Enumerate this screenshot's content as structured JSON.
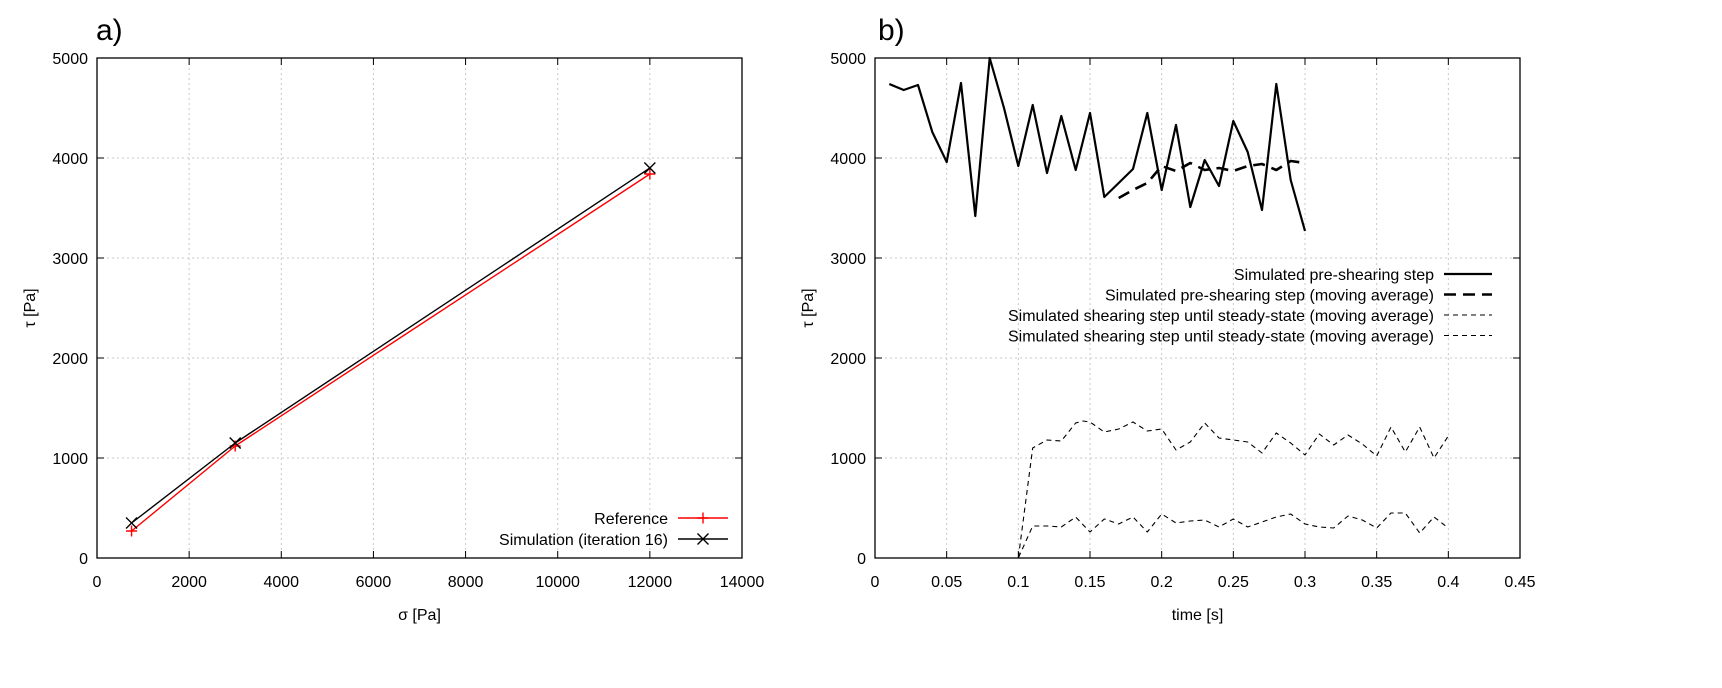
{
  "panels": {
    "a_label": "a)",
    "b_label": "b)"
  },
  "chart_data": [
    {
      "type": "line",
      "panel": "a)",
      "xlabel": "σ [Pa]",
      "ylabel": "τ [Pa]",
      "xlim": [
        0,
        14000
      ],
      "ylim": [
        0,
        5000
      ],
      "xticks": [
        0,
        2000,
        4000,
        6000,
        8000,
        10000,
        12000,
        14000
      ],
      "yticks": [
        0,
        1000,
        2000,
        3000,
        4000,
        5000
      ],
      "grid": true,
      "legend_position": "bottom-right",
      "series": [
        {
          "name": "Reference",
          "color": "#ff0000",
          "marker": "plus",
          "x": [
            750,
            3000,
            12000
          ],
          "y": [
            270,
            1120,
            3840
          ]
        },
        {
          "name": "Simulation (iteration 16)",
          "color": "#000000",
          "marker": "cross",
          "x": [
            750,
            3000,
            12000
          ],
          "y": [
            350,
            1150,
            3900
          ]
        }
      ]
    },
    {
      "type": "line",
      "panel": "b)",
      "xlabel": "time [s]",
      "ylabel": "τ [Pa]",
      "xlim": [
        0,
        0.45
      ],
      "ylim": [
        0,
        5000
      ],
      "xticks": [
        0,
        0.05,
        0.1,
        0.15,
        0.2,
        0.25,
        0.3,
        0.35,
        0.4,
        0.45
      ],
      "yticks": [
        0,
        1000,
        2000,
        3000,
        4000,
        5000
      ],
      "grid": true,
      "legend_position": "top-right",
      "series": [
        {
          "name": "Simulated pre-shearing step",
          "style": "solid",
          "color": "#000000",
          "x": [
            0.01,
            0.02,
            0.03,
            0.04,
            0.05,
            0.06,
            0.07,
            0.08,
            0.09,
            0.1,
            0.11,
            0.12,
            0.13,
            0.14,
            0.15,
            0.16,
            0.17,
            0.18,
            0.19,
            0.2,
            0.21,
            0.22,
            0.23,
            0.24,
            0.25,
            0.26,
            0.27,
            0.28,
            0.29,
            0.3
          ],
          "y": [
            4740,
            4680,
            4730,
            4260,
            3960,
            4750,
            3420,
            5000,
            4500,
            3920,
            4530,
            3850,
            4420,
            3880,
            4450,
            3610,
            3750,
            3890,
            4450,
            3680,
            4330,
            3510,
            3980,
            3720,
            4370,
            4060,
            3480,
            4740,
            3780,
            3270
          ]
        },
        {
          "name": "Simulated pre-shearing step (moving average)",
          "style": "dashed",
          "color": "#000000",
          "x": [
            0.17,
            0.18,
            0.19,
            0.2,
            0.21,
            0.22,
            0.23,
            0.24,
            0.25,
            0.26,
            0.27,
            0.28,
            0.29,
            0.3
          ],
          "y": [
            3600,
            3680,
            3750,
            3920,
            3870,
            3950,
            3880,
            3900,
            3870,
            3920,
            3940,
            3880,
            3970,
            3950
          ]
        },
        {
          "name": "Simulated shearing step until steady-state (moving average)",
          "style": "thin-dashed",
          "color": "#000000",
          "x": [
            0,
            0.1,
            0.11,
            0.12,
            0.13,
            0.14,
            0.145,
            0.15,
            0.16,
            0.17,
            0.18,
            0.19,
            0.2,
            0.21,
            0.22,
            0.23,
            0.24,
            0.25,
            0.26,
            0.27,
            0.28,
            0.29,
            0.3,
            0.31,
            0.32,
            0.33,
            0.34,
            0.35,
            0.36,
            0.37,
            0.38,
            0.39,
            0.4
          ],
          "y": [
            0,
            0,
            1100,
            1180,
            1170,
            1350,
            1370,
            1360,
            1260,
            1290,
            1360,
            1270,
            1290,
            1080,
            1160,
            1350,
            1200,
            1180,
            1160,
            1050,
            1250,
            1150,
            1030,
            1240,
            1130,
            1230,
            1140,
            1020,
            1310,
            1060,
            1310,
            1000,
            1220
          ]
        },
        {
          "name": "Simulated shearing step until steady-state (moving average)",
          "style": "thin-dashed",
          "color": "#000000",
          "x": [
            0,
            0.1,
            0.11,
            0.12,
            0.13,
            0.14,
            0.15,
            0.16,
            0.17,
            0.18,
            0.19,
            0.2,
            0.21,
            0.22,
            0.23,
            0.24,
            0.25,
            0.26,
            0.27,
            0.28,
            0.29,
            0.3,
            0.31,
            0.32,
            0.33,
            0.34,
            0.35,
            0.36,
            0.37,
            0.38,
            0.39,
            0.4
          ],
          "y": [
            0,
            0,
            320,
            320,
            310,
            410,
            260,
            390,
            340,
            410,
            260,
            440,
            350,
            370,
            380,
            310,
            390,
            310,
            360,
            410,
            440,
            340,
            310,
            300,
            420,
            380,
            300,
            450,
            450,
            250,
            410,
            300
          ]
        }
      ]
    }
  ]
}
